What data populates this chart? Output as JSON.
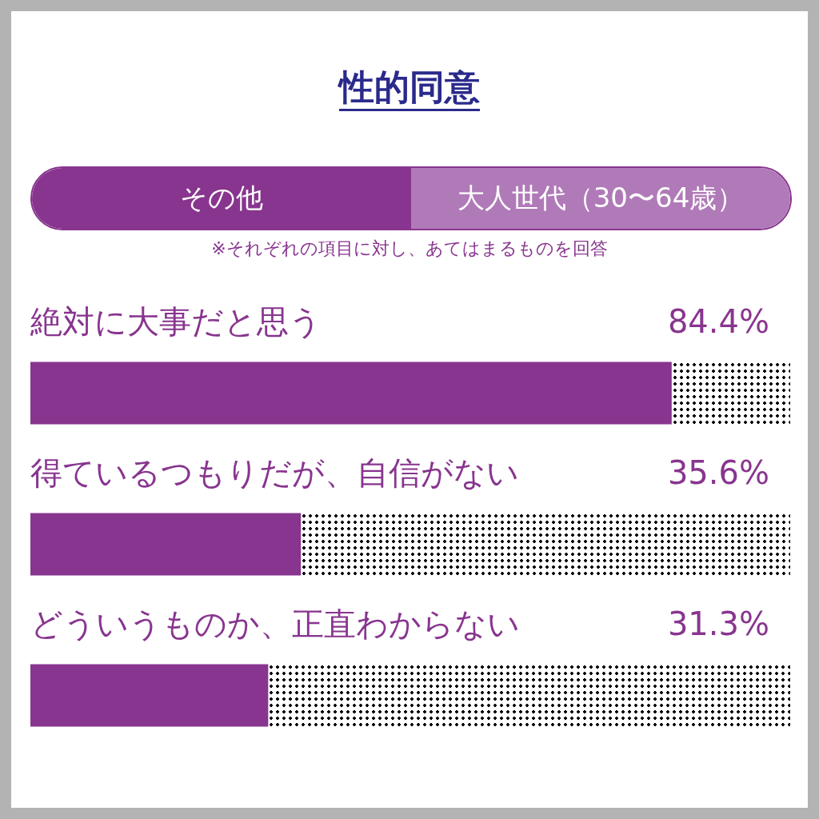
{
  "chart_data": {
    "type": "bar",
    "orientation": "horizontal",
    "title": "性的同意",
    "annotations": [
      "その他",
      "大人世代（30〜64歳）",
      "※それぞれの項目に対し、あてはまるものを回答"
    ],
    "categories": [
      "絶対に大事だと思う",
      "得ているつもりだが、自信がない",
      "どういうものか、正直わからない"
    ],
    "values": [
      84.4,
      35.6,
      31.3
    ],
    "value_labels": [
      "84.4%",
      "35.6%",
      "31.3%"
    ],
    "color": "#88358f",
    "xlim": [
      0,
      100
    ]
  }
}
